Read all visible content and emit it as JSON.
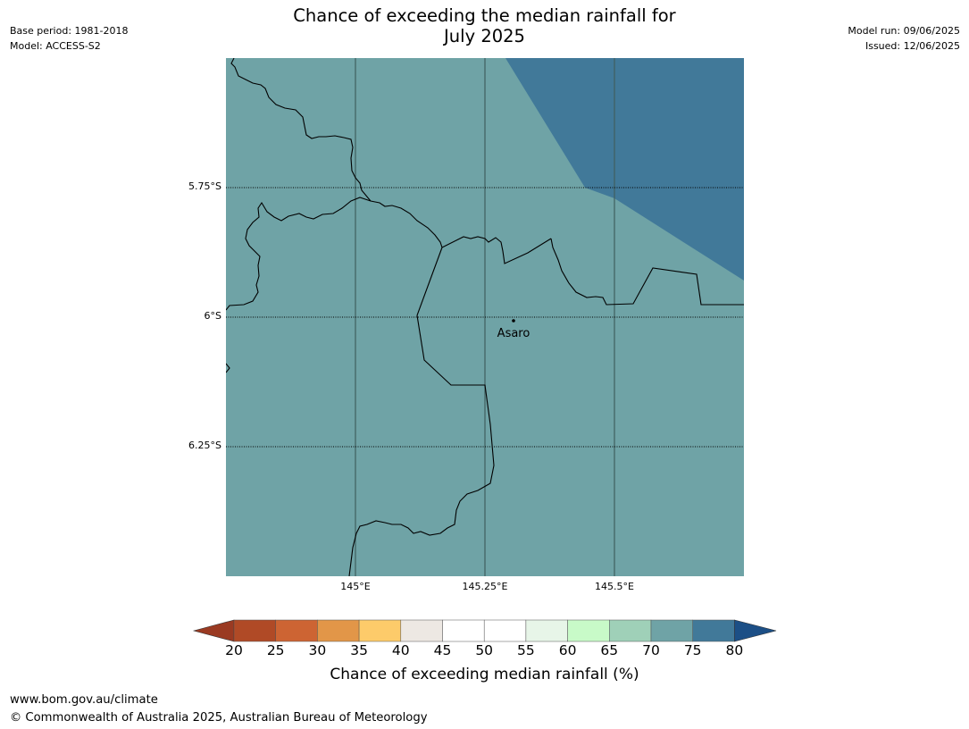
{
  "title": {
    "line1": "Chance of exceeding the median rainfall for",
    "line2": "July 2025"
  },
  "meta_left": {
    "base_period": "Base period: 1981-2018",
    "model": "Model: ACCESS-S2"
  },
  "meta_right": {
    "model_run": "Model run: 09/06/2025",
    "issued": "Issued: 12/06/2025"
  },
  "map": {
    "lat_labels": [
      "5.75°S",
      "6°S",
      "6.25°S"
    ],
    "lon_labels": [
      "145°E",
      "145.25°E",
      "145.5°E"
    ],
    "place": {
      "name": "Asaro",
      "lat": -6.01,
      "lon": 145.31
    },
    "regions": [
      {
        "category": "70-75",
        "color": "#6fa3a6"
      },
      {
        "category": "75-80",
        "color": "#417999"
      }
    ]
  },
  "colorbar": {
    "label": "Chance of exceeding median rainfall (%)",
    "ticks": [
      "20",
      "25",
      "30",
      "35",
      "40",
      "45",
      "50",
      "55",
      "60",
      "65",
      "70",
      "75",
      "80"
    ],
    "under_color": "#9a3a22",
    "over_color": "#1c4f86",
    "bins": [
      {
        "range": "20-25",
        "color": "#b04a26"
      },
      {
        "range": "25-30",
        "color": "#cd6433"
      },
      {
        "range": "30-35",
        "color": "#e29648"
      },
      {
        "range": "35-40",
        "color": "#fdcb6a"
      },
      {
        "range": "40-45",
        "color": "#ede8e3"
      },
      {
        "range": "45-50",
        "color": "#ffffff"
      },
      {
        "range": "50-55",
        "color": "#ffffff"
      },
      {
        "range": "55-60",
        "color": "#e7f5e8"
      },
      {
        "range": "60-65",
        "color": "#c8fac8"
      },
      {
        "range": "65-70",
        "color": "#9fd0b8"
      },
      {
        "range": "70-75",
        "color": "#6fa3a6"
      },
      {
        "range": "75-80",
        "color": "#417999"
      }
    ]
  },
  "footer": {
    "url": "www.bom.gov.au/climate",
    "copyright": "© Commonwealth of Australia 2025, Australian Bureau of Meteorology"
  }
}
